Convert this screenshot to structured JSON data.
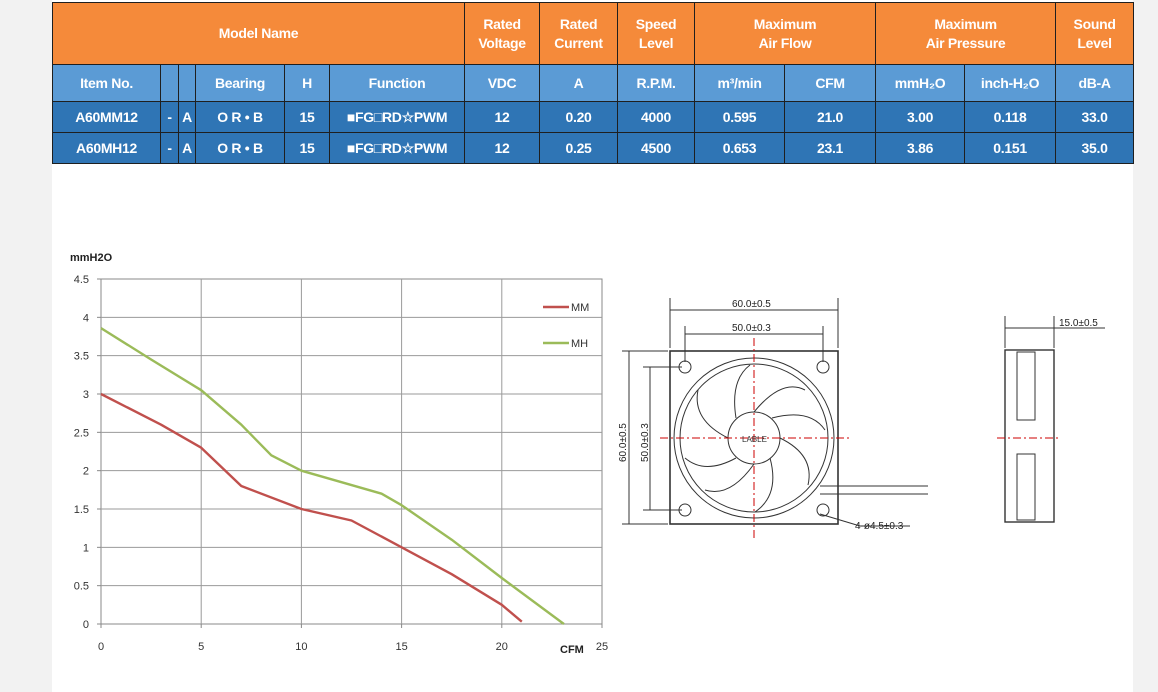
{
  "spec_table": {
    "headers": {
      "model_name": "Model Name",
      "rated_voltage": [
        "Rated",
        "Voltage"
      ],
      "rated_current": [
        "Rated",
        "Current"
      ],
      "speed_level": [
        "Speed",
        "Level"
      ],
      "max_air_flow": [
        "Maximum",
        "Air Flow"
      ],
      "max_air_pressure": [
        "Maximum",
        "Air Pressure"
      ],
      "sound_level": [
        "Sound",
        "Level"
      ]
    },
    "subheaders": {
      "item_no": "Item No.",
      "bearing": "Bearing",
      "h": "H",
      "function": "Function",
      "vdc": "VDC",
      "a": "A",
      "rpm": "R.P.M.",
      "m3min": "m³/min",
      "cfm": "CFM",
      "mmh2o": "mmH₂O",
      "inch_h2o": "inch-H₂O",
      "dba": "dB-A"
    },
    "rows": [
      {
        "item_no": "A60MM12",
        "dash": "-",
        "suffix": "A",
        "bearing": "O R • B",
        "h": "15",
        "function": "■FG□RD☆PWM",
        "vdc": "12",
        "a": "0.20",
        "rpm": "4000",
        "m3min": "0.595",
        "cfm": "21.0",
        "mmh2o": "3.00",
        "inch_h2o": "0.118",
        "dba": "33.0"
      },
      {
        "item_no": "A60MH12",
        "dash": "-",
        "suffix": "A",
        "bearing": "O R • B",
        "h": "15",
        "function": "■FG□RD☆PWM",
        "vdc": "12",
        "a": "0.25",
        "rpm": "4500",
        "m3min": "0.653",
        "cfm": "23.1",
        "mmh2o": "3.86",
        "inch_h2o": "0.151",
        "dba": "35.0"
      }
    ]
  },
  "chart_data": {
    "type": "line",
    "ylabel": "mmH2O",
    "xlabel": "CFM",
    "xlim": [
      0,
      25
    ],
    "ylim": [
      0,
      4.5
    ],
    "xticks": [
      0,
      5,
      10,
      15,
      20,
      25
    ],
    "yticks": [
      0,
      0.5,
      1,
      1.5,
      2,
      2.5,
      3,
      3.5,
      4,
      4.5
    ],
    "grid": true,
    "legend_position": "top-right",
    "series": [
      {
        "name": "MM",
        "color": "#c0504d",
        "points": [
          [
            0,
            3.0
          ],
          [
            3,
            2.6
          ],
          [
            5,
            2.3
          ],
          [
            7,
            1.8
          ],
          [
            10,
            1.5
          ],
          [
            12.5,
            1.35
          ],
          [
            15,
            1.0
          ],
          [
            17.5,
            0.65
          ],
          [
            20,
            0.25
          ],
          [
            21,
            0.03
          ]
        ]
      },
      {
        "name": "MH",
        "color": "#9bbb59",
        "points": [
          [
            0,
            3.86
          ],
          [
            2.5,
            3.45
          ],
          [
            5,
            3.05
          ],
          [
            7,
            2.6
          ],
          [
            8.5,
            2.2
          ],
          [
            10,
            2.0
          ],
          [
            12,
            1.85
          ],
          [
            14,
            1.7
          ],
          [
            15,
            1.55
          ],
          [
            17.5,
            1.1
          ],
          [
            20,
            0.6
          ],
          [
            23.1,
            0.0
          ]
        ]
      }
    ]
  },
  "drawing": {
    "dim_60": "60.0±0.5",
    "dim_50": "50.0±0.3",
    "dim_60_v": "60.0±0.5",
    "dim_50_v": "50.0±0.3",
    "hole_note": "4-ø4.5±0.3",
    "label_text": "LABLE",
    "side_dim": "15.0±0.5"
  }
}
